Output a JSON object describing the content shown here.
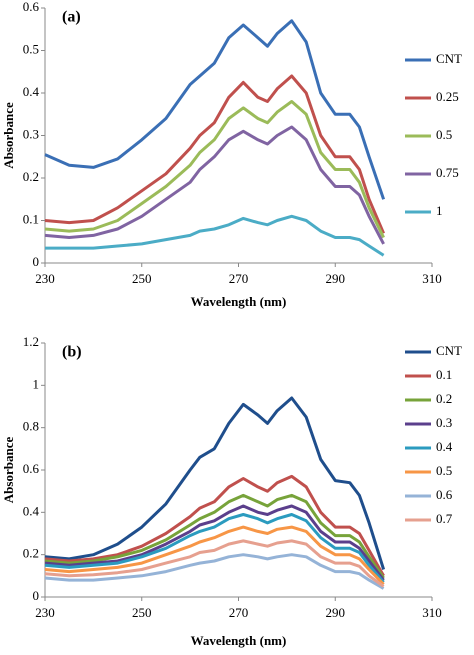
{
  "chart_data": [
    {
      "type": "line",
      "title": "(a)",
      "xlabel": "Wavelength (nm)",
      "ylabel": "Absorbance",
      "x": [
        230,
        235,
        240,
        245,
        250,
        255,
        260,
        262,
        265,
        268,
        271,
        274,
        276,
        278,
        281,
        284,
        287,
        290,
        293,
        295,
        297,
        300
      ],
      "xlim": [
        230,
        310
      ],
      "xticks": [
        230,
        250,
        270,
        290,
        310
      ],
      "ylim": [
        0,
        0.6
      ],
      "yticks": [
        0,
        0.1,
        0.2,
        0.3,
        0.4,
        0.5,
        0.6
      ],
      "series": [
        {
          "name": "CNT",
          "color": "#3a6fb5",
          "values": [
            0.255,
            0.23,
            0.225,
            0.245,
            0.29,
            0.34,
            0.42,
            0.44,
            0.47,
            0.53,
            0.56,
            0.53,
            0.51,
            0.54,
            0.57,
            0.52,
            0.4,
            0.35,
            0.35,
            0.32,
            0.25,
            0.15
          ]
        },
        {
          "name": "0.25",
          "color": "#c0504d",
          "values": [
            0.1,
            0.095,
            0.1,
            0.13,
            0.17,
            0.21,
            0.27,
            0.3,
            0.33,
            0.39,
            0.425,
            0.39,
            0.38,
            0.41,
            0.44,
            0.4,
            0.3,
            0.25,
            0.25,
            0.22,
            0.15,
            0.07
          ]
        },
        {
          "name": "0.5",
          "color": "#9bbb59",
          "values": [
            0.08,
            0.075,
            0.08,
            0.1,
            0.14,
            0.18,
            0.23,
            0.26,
            0.29,
            0.34,
            0.365,
            0.34,
            0.33,
            0.355,
            0.38,
            0.35,
            0.26,
            0.22,
            0.22,
            0.19,
            0.13,
            0.06
          ]
        },
        {
          "name": "0.75",
          "color": "#8064a2",
          "values": [
            0.065,
            0.06,
            0.065,
            0.08,
            0.11,
            0.15,
            0.19,
            0.22,
            0.25,
            0.29,
            0.31,
            0.29,
            0.28,
            0.3,
            0.32,
            0.29,
            0.22,
            0.18,
            0.18,
            0.16,
            0.11,
            0.045
          ]
        },
        {
          "name": "1",
          "color": "#4bacc6",
          "values": [
            0.035,
            0.035,
            0.035,
            0.04,
            0.045,
            0.055,
            0.065,
            0.075,
            0.08,
            0.09,
            0.105,
            0.095,
            0.09,
            0.1,
            0.11,
            0.1,
            0.075,
            0.06,
            0.06,
            0.055,
            0.04,
            0.018
          ]
        }
      ]
    },
    {
      "type": "line",
      "title": "(b)",
      "xlabel": "Wavelength (nm)",
      "ylabel": "Absorbance",
      "x": [
        230,
        235,
        240,
        245,
        250,
        255,
        260,
        262,
        265,
        268,
        271,
        274,
        276,
        278,
        281,
        284,
        287,
        290,
        293,
        295,
        297,
        300
      ],
      "xlim": [
        230,
        310
      ],
      "xticks": [
        230,
        250,
        270,
        290,
        310
      ],
      "ylim": [
        0,
        1.2
      ],
      "yticks": [
        0,
        0.2,
        0.4,
        0.6,
        0.8,
        1,
        1.2
      ],
      "series": [
        {
          "name": "CNT",
          "color": "#1f4e8c",
          "values": [
            0.19,
            0.18,
            0.2,
            0.25,
            0.33,
            0.44,
            0.6,
            0.66,
            0.7,
            0.82,
            0.91,
            0.86,
            0.82,
            0.88,
            0.94,
            0.85,
            0.65,
            0.55,
            0.54,
            0.48,
            0.35,
            0.13
          ]
        },
        {
          "name": "0.1",
          "color": "#c0504d",
          "values": [
            0.18,
            0.17,
            0.18,
            0.2,
            0.24,
            0.3,
            0.38,
            0.42,
            0.45,
            0.52,
            0.56,
            0.52,
            0.5,
            0.54,
            0.57,
            0.52,
            0.4,
            0.33,
            0.33,
            0.3,
            0.22,
            0.1
          ]
        },
        {
          "name": "0.2",
          "color": "#77a33a",
          "values": [
            0.17,
            0.16,
            0.17,
            0.19,
            0.22,
            0.27,
            0.34,
            0.37,
            0.4,
            0.45,
            0.48,
            0.45,
            0.43,
            0.46,
            0.48,
            0.45,
            0.35,
            0.29,
            0.29,
            0.26,
            0.19,
            0.09
          ]
        },
        {
          "name": "0.3",
          "color": "#5b3f8c",
          "values": [
            0.16,
            0.15,
            0.16,
            0.17,
            0.2,
            0.25,
            0.31,
            0.34,
            0.36,
            0.4,
            0.43,
            0.4,
            0.39,
            0.41,
            0.43,
            0.4,
            0.31,
            0.26,
            0.26,
            0.23,
            0.17,
            0.08
          ]
        },
        {
          "name": "0.4",
          "color": "#2b9bbf",
          "values": [
            0.15,
            0.14,
            0.15,
            0.16,
            0.19,
            0.23,
            0.29,
            0.31,
            0.33,
            0.37,
            0.39,
            0.37,
            0.35,
            0.37,
            0.39,
            0.36,
            0.28,
            0.23,
            0.23,
            0.21,
            0.15,
            0.07
          ]
        },
        {
          "name": "0.5",
          "color": "#f79646",
          "values": [
            0.13,
            0.12,
            0.13,
            0.14,
            0.16,
            0.2,
            0.24,
            0.26,
            0.28,
            0.31,
            0.33,
            0.31,
            0.3,
            0.32,
            0.33,
            0.31,
            0.24,
            0.2,
            0.2,
            0.18,
            0.13,
            0.06
          ]
        },
        {
          "name": "0.6",
          "color": "#95b3d7",
          "values": [
            0.09,
            0.08,
            0.08,
            0.09,
            0.1,
            0.12,
            0.15,
            0.16,
            0.17,
            0.19,
            0.2,
            0.19,
            0.18,
            0.19,
            0.2,
            0.19,
            0.15,
            0.12,
            0.12,
            0.11,
            0.08,
            0.04
          ]
        },
        {
          "name": "0.7",
          "color": "#e6a08f",
          "values": [
            0.11,
            0.1,
            0.105,
            0.115,
            0.13,
            0.16,
            0.19,
            0.21,
            0.22,
            0.25,
            0.265,
            0.25,
            0.24,
            0.255,
            0.265,
            0.25,
            0.19,
            0.16,
            0.16,
            0.145,
            0.1,
            0.05
          ]
        }
      ]
    }
  ]
}
